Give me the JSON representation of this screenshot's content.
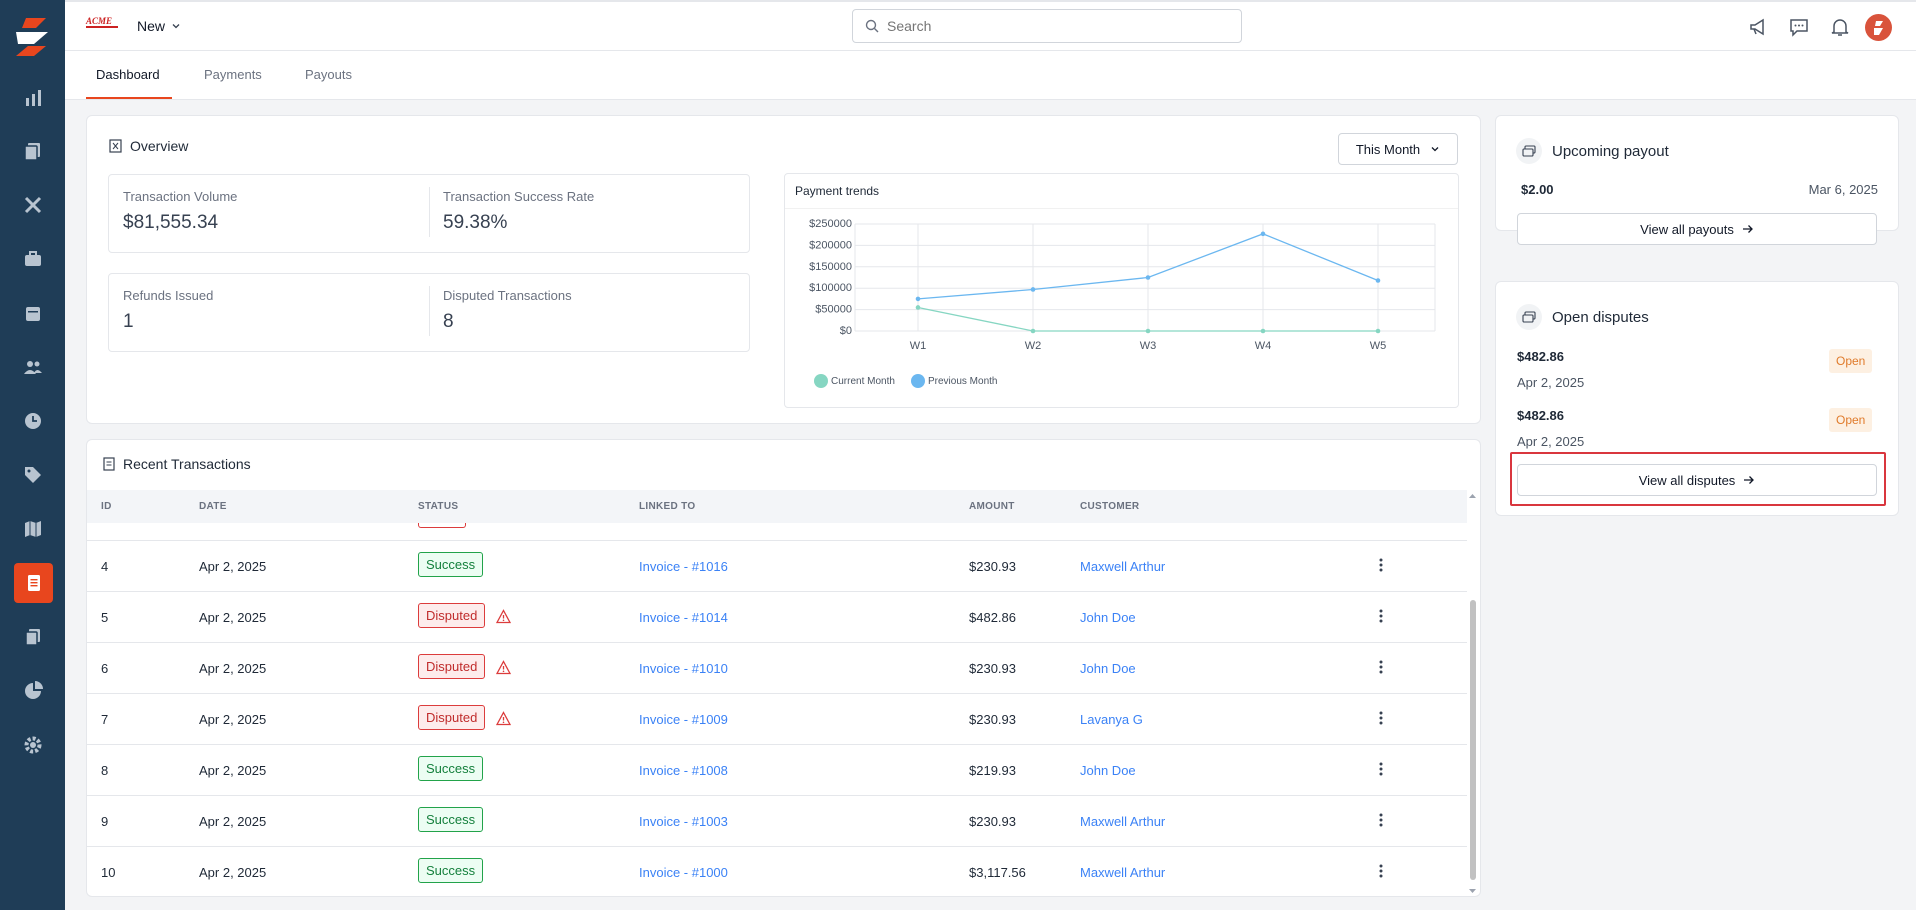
{
  "topbar": {
    "workspace": "New",
    "search_placeholder": "Search"
  },
  "tabs": [
    {
      "label": "Dashboard"
    },
    {
      "label": "Payments"
    },
    {
      "label": "Payouts"
    }
  ],
  "overview": {
    "title": "Overview",
    "period": "This Month",
    "stats": [
      {
        "label": "Transaction Volume",
        "value": "$81,555.34"
      },
      {
        "label": "Transaction Success Rate",
        "value": "59.38%"
      },
      {
        "label": "Refunds Issued",
        "value": "1"
      },
      {
        "label": "Disputed Transactions",
        "value": "8"
      }
    ]
  },
  "chart_data": {
    "type": "line",
    "title": "Payment trends",
    "categories": [
      "W1",
      "W2",
      "W3",
      "W4",
      "W5"
    ],
    "ylim": [
      0,
      250000
    ],
    "yticks": [
      "$0",
      "$50000",
      "$100000",
      "$150000",
      "$200000",
      "$250000"
    ],
    "series": [
      {
        "name": "Current Month",
        "color": "#86d6c2",
        "values": [
          55000,
          0,
          0,
          0,
          0
        ]
      },
      {
        "name": "Previous Month",
        "color": "#6bb7f0",
        "values": [
          75000,
          97000,
          125000,
          227000,
          118000
        ]
      }
    ],
    "legend": "bottom-left",
    "grid": true
  },
  "recent": {
    "title": "Recent Transactions",
    "columns": [
      "ID",
      "DATE",
      "STATUS",
      "LINKED TO",
      "AMOUNT",
      "CUSTOMER"
    ],
    "rows": [
      {
        "id": "4",
        "date": "Apr 2, 2025",
        "status": "Success",
        "linked": "Invoice - #1016",
        "amount": "$230.93",
        "customer": "Maxwell Arthur"
      },
      {
        "id": "5",
        "date": "Apr 2, 2025",
        "status": "Disputed",
        "linked": "Invoice - #1014",
        "amount": "$482.86",
        "customer": "John Doe"
      },
      {
        "id": "6",
        "date": "Apr 2, 2025",
        "status": "Disputed",
        "linked": "Invoice - #1010",
        "amount": "$230.93",
        "customer": "John Doe"
      },
      {
        "id": "7",
        "date": "Apr 2, 2025",
        "status": "Disputed",
        "linked": "Invoice - #1009",
        "amount": "$230.93",
        "customer": "Lavanya G"
      },
      {
        "id": "8",
        "date": "Apr 2, 2025",
        "status": "Success",
        "linked": "Invoice - #1008",
        "amount": "$219.93",
        "customer": "John Doe"
      },
      {
        "id": "9",
        "date": "Apr 2, 2025",
        "status": "Success",
        "linked": "Invoice - #1003",
        "amount": "$230.93",
        "customer": "Maxwell Arthur"
      },
      {
        "id": "10",
        "date": "Apr 2, 2025",
        "status": "Success",
        "linked": "Invoice - #1000",
        "amount": "$3,117.56",
        "customer": "Maxwell Arthur"
      }
    ]
  },
  "payout": {
    "title": "Upcoming payout",
    "amount": "$2.00",
    "date": "Mar 6, 2025",
    "button": "View all payouts"
  },
  "disputes": {
    "title": "Open disputes",
    "items": [
      {
        "amount": "$482.86",
        "date": "Apr 2, 2025",
        "status": "Open"
      },
      {
        "amount": "$482.86",
        "date": "Apr 2, 2025",
        "status": "Open"
      }
    ],
    "button": "View all disputes"
  },
  "colors": {
    "sidebar": "#1f3d57",
    "accent": "#e8461e",
    "link": "#3b82f6"
  }
}
